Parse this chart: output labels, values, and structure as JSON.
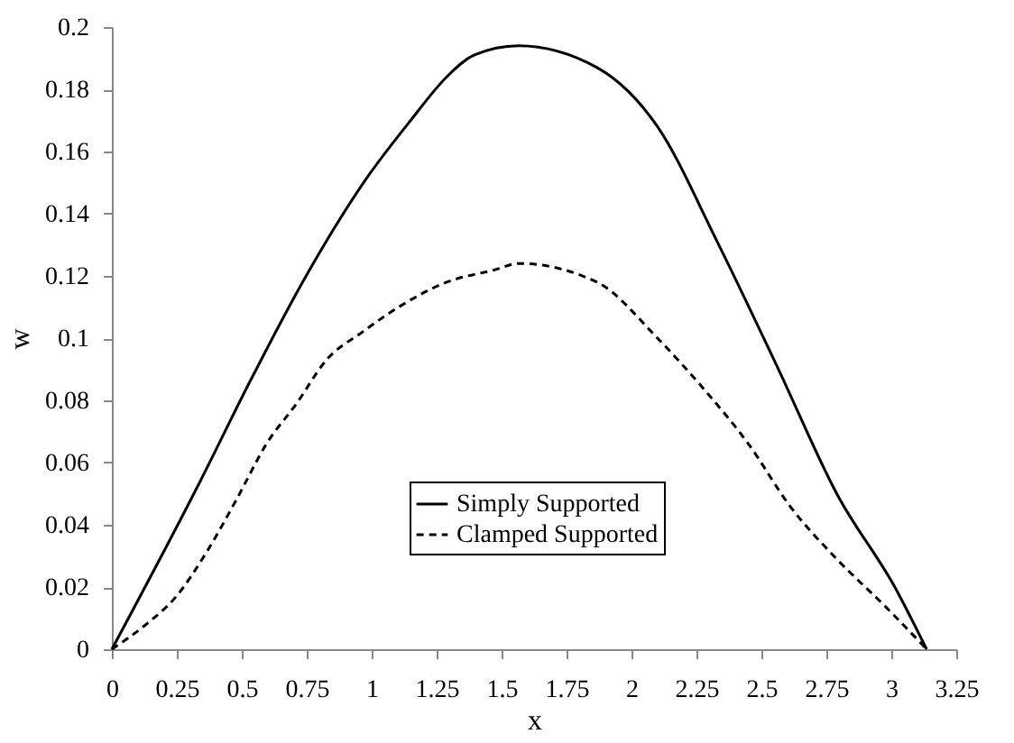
{
  "chart_data": {
    "type": "line",
    "xlabel": "x",
    "ylabel": "w",
    "xlim": [
      0,
      3.25
    ],
    "ylim": [
      0,
      0.2
    ],
    "xticks": [
      0,
      0.25,
      0.5,
      0.75,
      1,
      1.25,
      1.5,
      1.75,
      2,
      2.25,
      2.5,
      2.75,
      3,
      3.25
    ],
    "yticks": [
      0,
      0.02,
      0.04,
      0.06,
      0.08,
      0.1,
      0.12,
      0.14,
      0.16,
      0.18,
      0.2
    ],
    "grid": false,
    "legend": "bottom",
    "series": [
      {
        "name": "Simply Supported",
        "color": "#000000",
        "line_style": "solid",
        "x": [
          0,
          0.34,
          0.525,
          0.734,
          0.977,
          1.15,
          1.289,
          1.394,
          1.565,
          1.867,
          2.1,
          2.33,
          2.56,
          2.79,
          3.02,
          3.136
        ],
        "values": [
          0,
          0.054,
          0.085,
          0.118,
          0.151,
          0.17,
          0.184,
          0.191,
          0.194,
          0.187,
          0.168,
          0.131,
          0.091,
          0.05,
          0.019,
          0
        ]
      },
      {
        "name": "Clamped Supported",
        "color": "#000000",
        "line_style": "dashed",
        "x": [
          0,
          0.132,
          0.248,
          0.363,
          0.479,
          0.595,
          0.711,
          0.826,
          0.965,
          1.104,
          1.289,
          1.475,
          1.565,
          1.867,
          2.1,
          2.285,
          2.45,
          2.61,
          2.79,
          2.98,
          3.136
        ],
        "values": [
          0,
          0.008,
          0.017,
          0.031,
          0.048,
          0.066,
          0.079,
          0.093,
          0.102,
          0.11,
          0.118,
          0.122,
          0.124,
          0.118,
          0.1,
          0.083,
          0.066,
          0.046,
          0.029,
          0.0135,
          0
        ]
      }
    ]
  }
}
